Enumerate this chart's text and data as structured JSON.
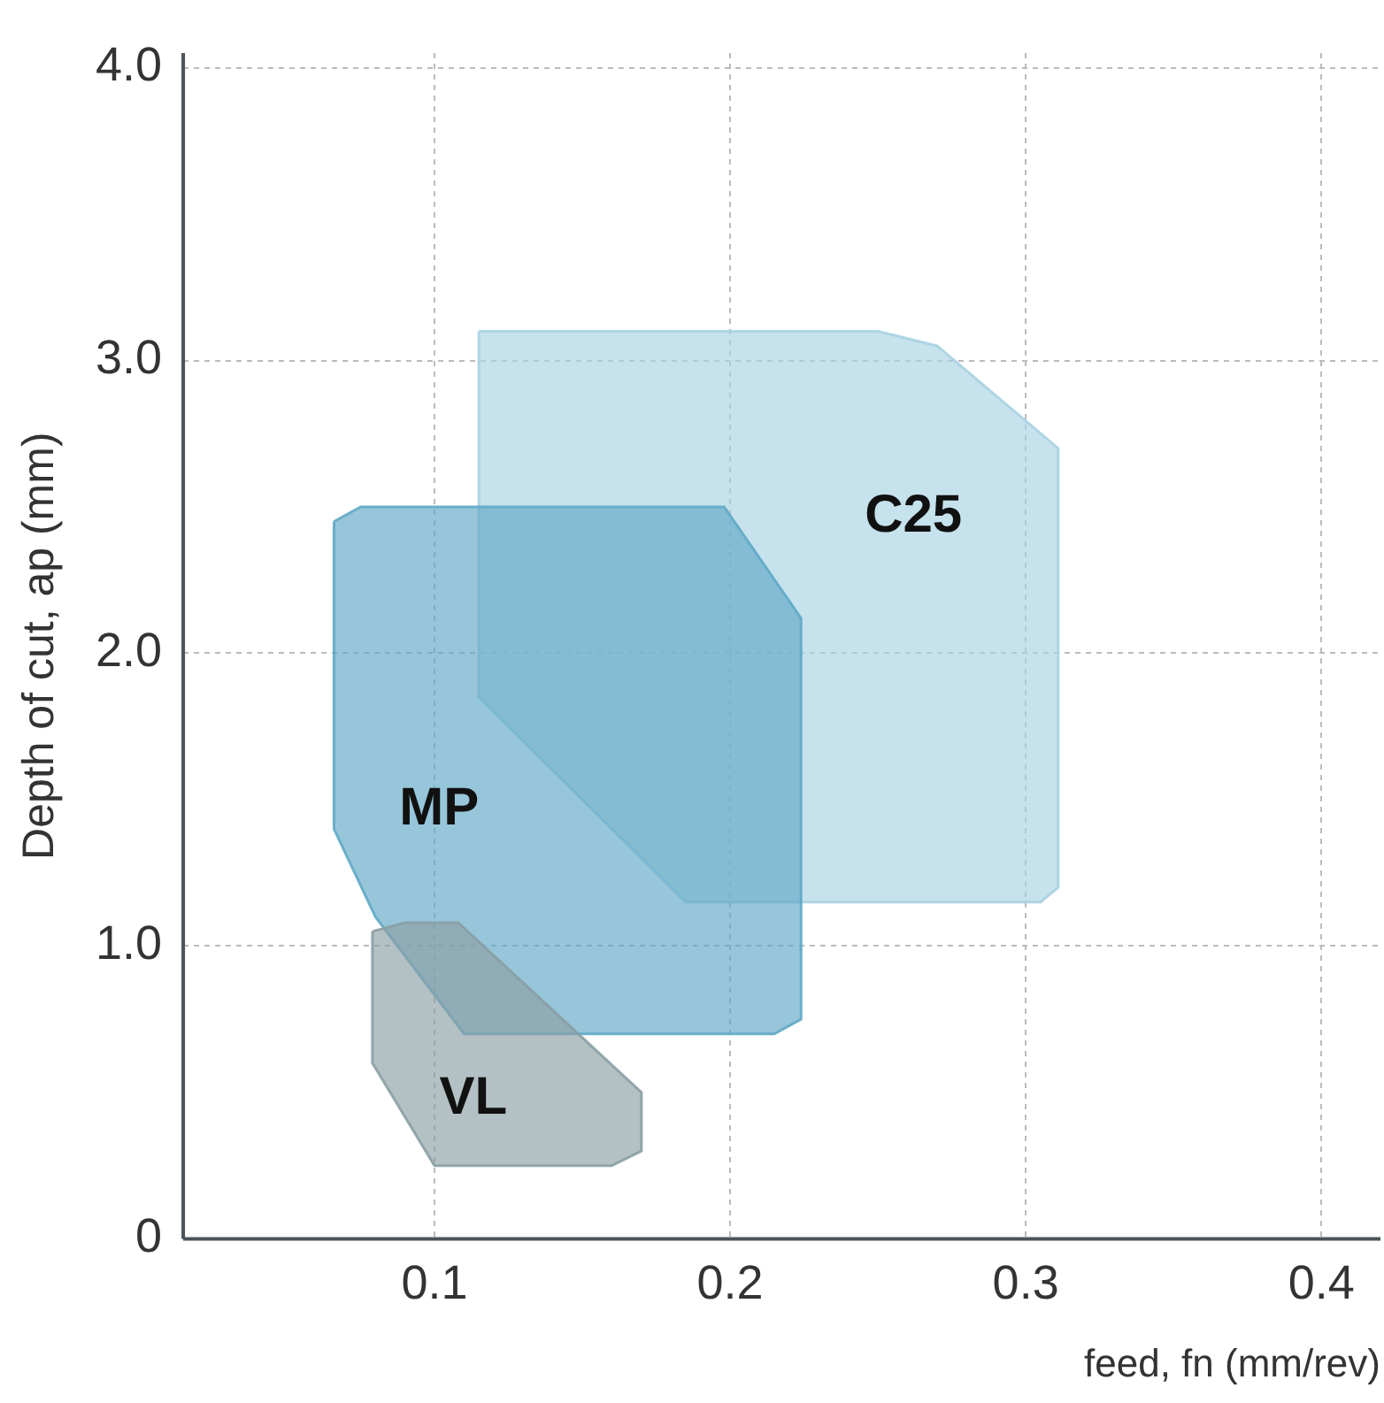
{
  "chart_data": {
    "type": "area",
    "xlabel": "feed, fn (mm/rev)",
    "ylabel": "Depth of cut, ap (mm)",
    "xlim": [
      0.015,
      0.42
    ],
    "ylim": [
      0,
      4.05
    ],
    "xticks": [
      0.1,
      0.2,
      0.3,
      0.4
    ],
    "yticks": [
      0,
      {
        "value": 1,
        "label": "1.0"
      },
      {
        "value": 2,
        "label": "2.0"
      },
      {
        "value": 3,
        "label": "3.0"
      },
      {
        "value": 4,
        "label": "4.0"
      }
    ],
    "grid": true,
    "legend": false,
    "series": [
      {
        "name": "C25",
        "color": "#a8d2e2",
        "x": [
          0.115,
          0.25,
          0.27,
          0.311,
          0.311,
          0.305,
          0.185,
          0.115,
          0.115
        ],
        "values": [
          3.1,
          3.1,
          3.05,
          2.7,
          1.2,
          1.15,
          1.15,
          1.85,
          3.1
        ]
      },
      {
        "name": "MP",
        "color": "#5fa8c6",
        "x": [
          0.066,
          0.075,
          0.198,
          0.224,
          0.224,
          0.215,
          0.11,
          0.08,
          0.066,
          0.066
        ],
        "values": [
          2.45,
          2.5,
          2.5,
          2.12,
          0.75,
          0.7,
          0.7,
          1.1,
          1.4,
          2.45
        ]
      },
      {
        "name": "VL",
        "color": "#8a9ea5",
        "x": [
          0.079,
          0.09,
          0.108,
          0.17,
          0.17,
          0.16,
          0.1,
          0.079,
          0.079
        ],
        "values": [
          1.05,
          1.08,
          1.08,
          0.5,
          0.3,
          0.25,
          0.25,
          0.6,
          1.05
        ]
      }
    ]
  }
}
